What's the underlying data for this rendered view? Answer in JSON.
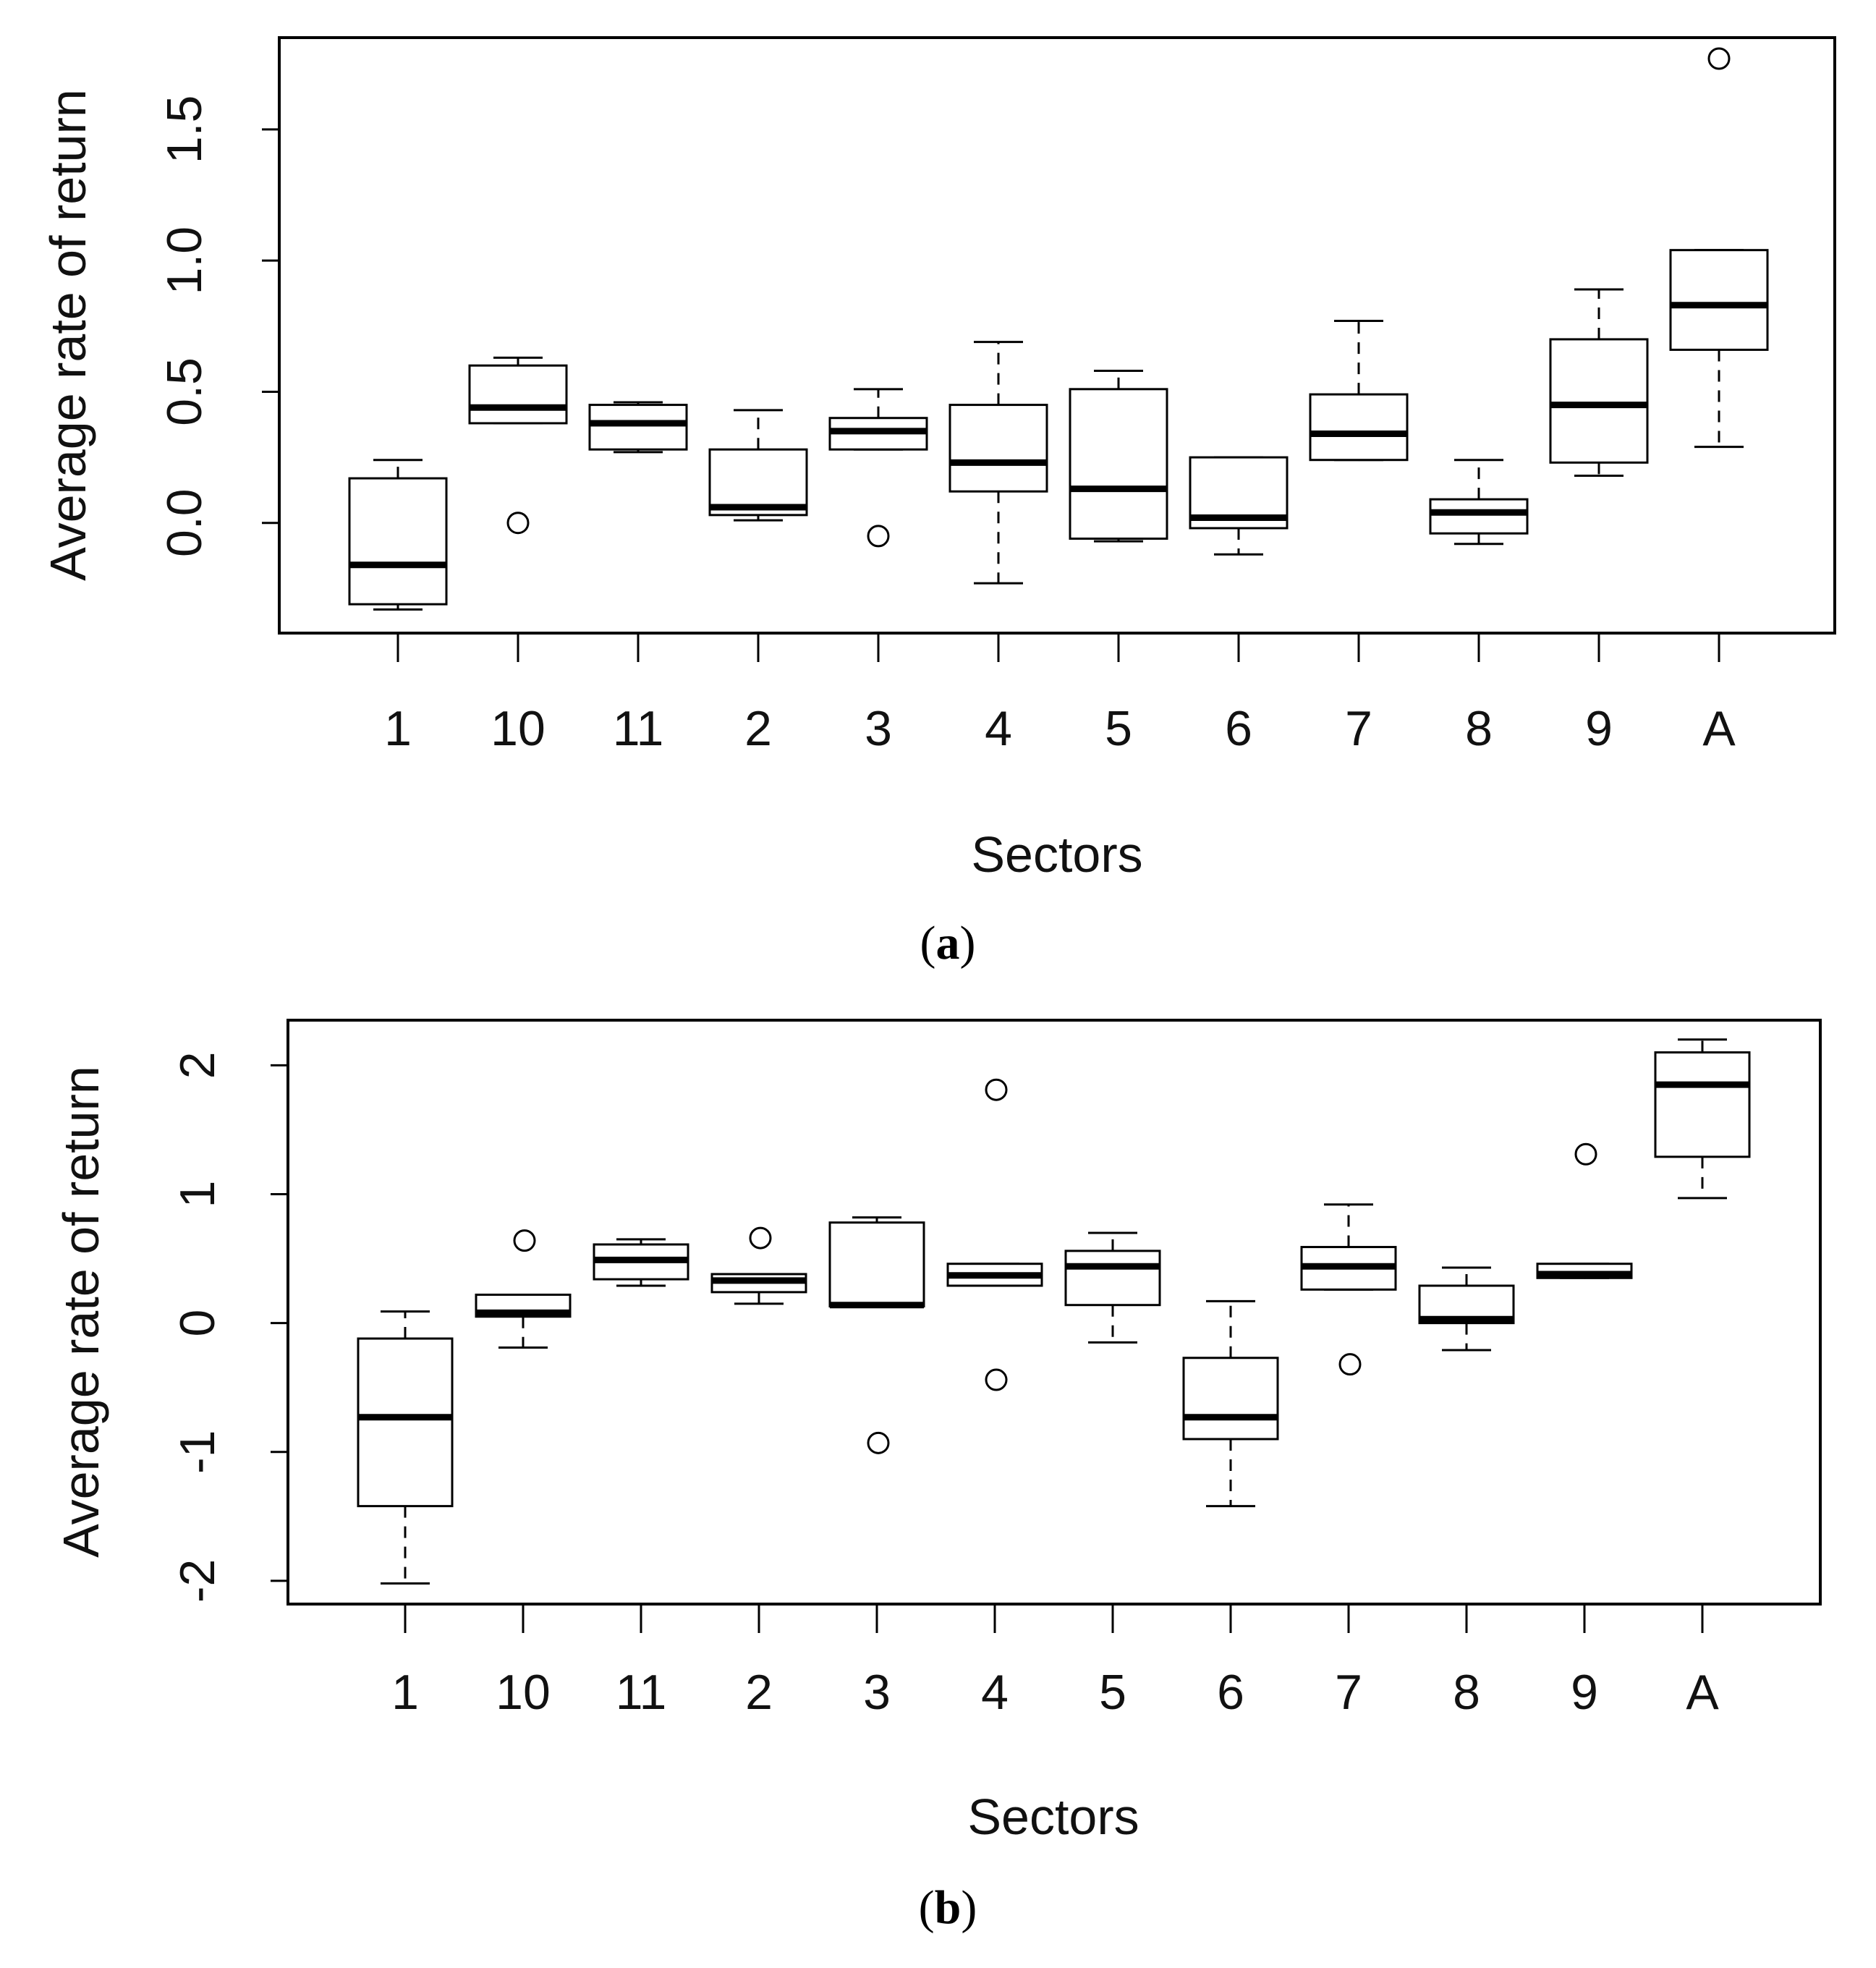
{
  "chart_data": [
    {
      "type": "box",
      "panel": "a",
      "caption_letter": "a",
      "xlabel": "Sectors",
      "ylabel": "Average rate of return",
      "ylim": [
        -0.42,
        1.85
      ],
      "yticks": [
        0.0,
        0.5,
        1.0,
        1.5
      ],
      "ytick_labels": [
        "0.0",
        "0.5",
        "1.0",
        "1.5"
      ],
      "categories": [
        "1",
        "10",
        "11",
        "2",
        "3",
        "4",
        "5",
        "6",
        "7",
        "8",
        "9",
        "A"
      ],
      "boxes": [
        {
          "category": "1",
          "whisker_low": -0.33,
          "q1": -0.31,
          "median": -0.16,
          "q3": 0.17,
          "whisker_high": 0.24,
          "outliers": []
        },
        {
          "category": "10",
          "whisker_low": 0.38,
          "q1": 0.38,
          "median": 0.44,
          "q3": 0.6,
          "whisker_high": 0.63,
          "outliers": [
            0.0
          ]
        },
        {
          "category": "11",
          "whisker_low": 0.27,
          "q1": 0.28,
          "median": 0.38,
          "q3": 0.45,
          "whisker_high": 0.46,
          "outliers": []
        },
        {
          "category": "2",
          "whisker_low": 0.01,
          "q1": 0.03,
          "median": 0.06,
          "q3": 0.28,
          "whisker_high": 0.43,
          "outliers": []
        },
        {
          "category": "3",
          "whisker_low": 0.28,
          "q1": 0.28,
          "median": 0.35,
          "q3": 0.4,
          "whisker_high": 0.51,
          "outliers": [
            -0.05
          ]
        },
        {
          "category": "4",
          "whisker_low": -0.23,
          "q1": 0.12,
          "median": 0.23,
          "q3": 0.45,
          "whisker_high": 0.69,
          "outliers": []
        },
        {
          "category": "5",
          "whisker_low": -0.07,
          "q1": -0.06,
          "median": 0.13,
          "q3": 0.51,
          "whisker_high": 0.58,
          "outliers": []
        },
        {
          "category": "6",
          "whisker_low": -0.12,
          "q1": -0.02,
          "median": 0.02,
          "q3": 0.25,
          "whisker_high": 0.25,
          "outliers": []
        },
        {
          "category": "7",
          "whisker_low": 0.24,
          "q1": 0.24,
          "median": 0.34,
          "q3": 0.49,
          "whisker_high": 0.77,
          "outliers": []
        },
        {
          "category": "8",
          "whisker_low": -0.08,
          "q1": -0.04,
          "median": 0.04,
          "q3": 0.09,
          "whisker_high": 0.24,
          "outliers": []
        },
        {
          "category": "9",
          "whisker_low": 0.18,
          "q1": 0.23,
          "median": 0.45,
          "q3": 0.7,
          "whisker_high": 0.89,
          "outliers": []
        },
        {
          "category": "A",
          "whisker_low": 0.29,
          "q1": 0.66,
          "median": 0.83,
          "q3": 1.04,
          "whisker_high": 1.04,
          "outliers": [
            1.77
          ]
        }
      ]
    },
    {
      "type": "box",
      "panel": "b",
      "caption_letter": "b",
      "xlabel": "Sectors",
      "ylabel": "Average rate of return",
      "ylim": [
        -2.18,
        2.35
      ],
      "yticks": [
        -2,
        -1,
        0,
        1,
        2
      ],
      "ytick_labels": [
        "-2",
        "-1",
        "0",
        "1",
        "2"
      ],
      "categories": [
        "1",
        "10",
        "11",
        "2",
        "3",
        "4",
        "5",
        "6",
        "7",
        "8",
        "9",
        "A"
      ],
      "boxes": [
        {
          "category": "1",
          "whisker_low": -2.02,
          "q1": -1.42,
          "median": -0.73,
          "q3": -0.12,
          "whisker_high": 0.09,
          "outliers": []
        },
        {
          "category": "10",
          "whisker_low": -0.19,
          "q1": 0.05,
          "median": 0.08,
          "q3": 0.22,
          "whisker_high": 0.22,
          "outliers": [
            0.64
          ]
        },
        {
          "category": "11",
          "whisker_low": 0.29,
          "q1": 0.34,
          "median": 0.49,
          "q3": 0.61,
          "whisker_high": 0.65,
          "outliers": []
        },
        {
          "category": "2",
          "whisker_low": 0.15,
          "q1": 0.24,
          "median": 0.33,
          "q3": 0.38,
          "whisker_high": 0.38,
          "outliers": [
            0.66
          ]
        },
        {
          "category": "3",
          "whisker_low": 0.13,
          "q1": 0.13,
          "median": 0.14,
          "q3": 0.78,
          "whisker_high": 0.82,
          "outliers": [
            -0.93
          ]
        },
        {
          "category": "4",
          "whisker_low": 0.29,
          "q1": 0.29,
          "median": 0.37,
          "q3": 0.46,
          "whisker_high": 0.46,
          "outliers": [
            1.81,
            -0.44
          ]
        },
        {
          "category": "5",
          "whisker_low": -0.15,
          "q1": 0.14,
          "median": 0.44,
          "q3": 0.56,
          "whisker_high": 0.7,
          "outliers": []
        },
        {
          "category": "6",
          "whisker_low": -1.42,
          "q1": -0.9,
          "median": -0.73,
          "q3": -0.27,
          "whisker_high": 0.17,
          "outliers": []
        },
        {
          "category": "7",
          "whisker_low": 0.26,
          "q1": 0.26,
          "median": 0.44,
          "q3": 0.59,
          "whisker_high": 0.92,
          "outliers": [
            -0.32
          ]
        },
        {
          "category": "8",
          "whisker_low": -0.21,
          "q1": 0.0,
          "median": 0.03,
          "q3": 0.29,
          "whisker_high": 0.43,
          "outliers": []
        },
        {
          "category": "9",
          "whisker_low": 0.35,
          "q1": 0.35,
          "median": 0.38,
          "q3": 0.46,
          "whisker_high": 0.46,
          "outliers": [
            1.31
          ]
        },
        {
          "category": "A",
          "whisker_low": 0.97,
          "q1": 1.29,
          "median": 1.85,
          "q3": 2.1,
          "whisker_high": 2.2,
          "outliers": []
        }
      ]
    }
  ]
}
